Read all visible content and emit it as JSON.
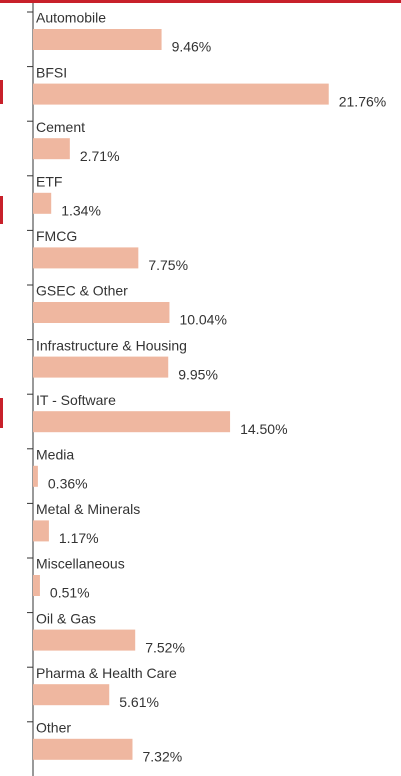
{
  "chart_data": {
    "type": "hbar",
    "categories": [
      "Automobile",
      "BFSI",
      "Cement",
      "ETF",
      "FMCG",
      "GSEC & Other",
      "Infrastructure & Housing",
      "IT - Software",
      "Media",
      "Metal & Minerals",
      "Miscellaneous",
      "Oil & Gas",
      "Pharma & Health Care",
      "Other"
    ],
    "values": [
      9.46,
      21.76,
      2.71,
      1.34,
      7.75,
      10.04,
      9.95,
      14.5,
      0.36,
      1.17,
      0.51,
      7.52,
      5.61,
      7.32
    ],
    "value_labels": [
      "9.46%",
      "21.76%",
      "2.71%",
      "1.34%",
      "7.75%",
      "10.04%",
      "9.95%",
      "14.50%",
      "0.36%",
      "1.17%",
      "0.51%",
      "7.52%",
      "5.61%",
      "7.32%"
    ],
    "color": "#efb7a0",
    "xlim": [
      0,
      22
    ]
  }
}
